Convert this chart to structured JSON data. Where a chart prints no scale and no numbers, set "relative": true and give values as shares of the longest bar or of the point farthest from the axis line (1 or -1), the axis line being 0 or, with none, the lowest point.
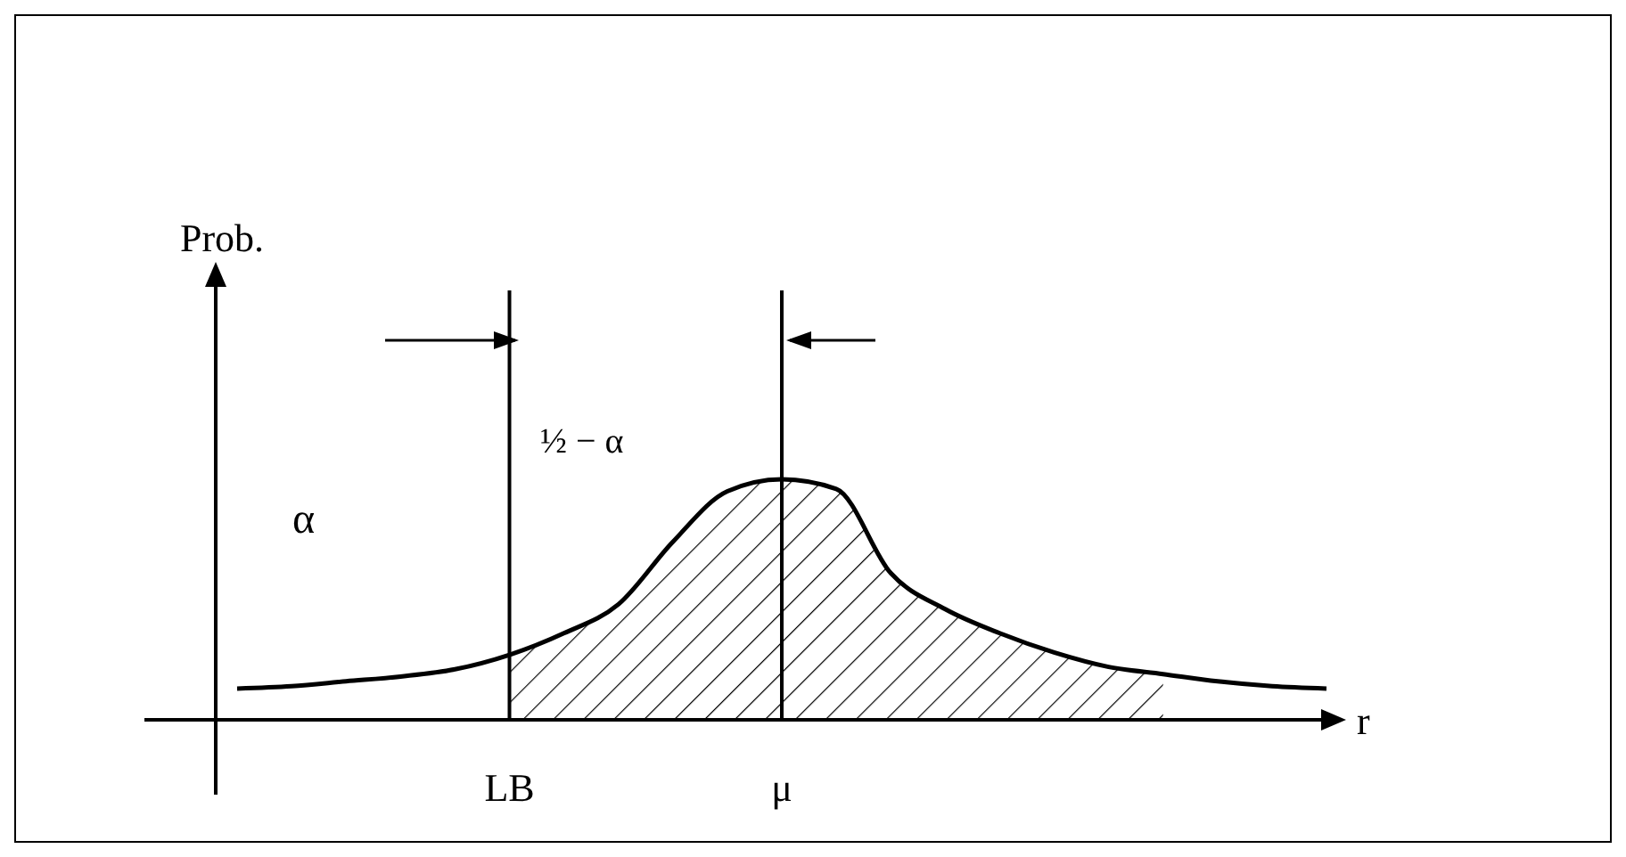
{
  "chart_data": {
    "type": "line",
    "relative": true,
    "xlabel": "r",
    "categories": [
      null,
      null,
      null,
      null,
      null,
      "LB",
      null,
      null,
      null,
      null,
      "μ",
      null,
      null,
      null,
      null,
      null,
      null,
      null,
      null,
      null,
      null
    ],
    "series": [
      {
        "color": "#000000",
        "values": [
          0.13,
          0.14,
          0.16,
          0.18,
          0.21,
          0.27,
          0.36,
          0.48,
          0.74,
          0.95,
          1,
          0.96,
          0.61,
          0.46,
          0.36,
          0.28,
          0.22,
          0.19,
          0.16,
          0.14,
          0.13
        ]
      },
      {
        "type": "area",
        "color": "#000000",
        "values": [
          null,
          null,
          null,
          null,
          null,
          0.27,
          0.36,
          0.48,
          0.74,
          0.95,
          1,
          0.96,
          0.61,
          0.46,
          0.36,
          0.28,
          0.22,
          0.19,
          null,
          null,
          null
        ]
      }
    ],
    "ref_lines": [
      {
        "axis": "x",
        "value": "LB",
        "label": null
      },
      {
        "axis": "x",
        "value": "μ",
        "label": null
      }
    ],
    "annotations": [
      "α",
      "½ − α",
      "Prob."
    ],
    "marker": "none",
    "line_style": "solid",
    "legend": false,
    "grid": false,
    "tick_labels": "x"
  }
}
